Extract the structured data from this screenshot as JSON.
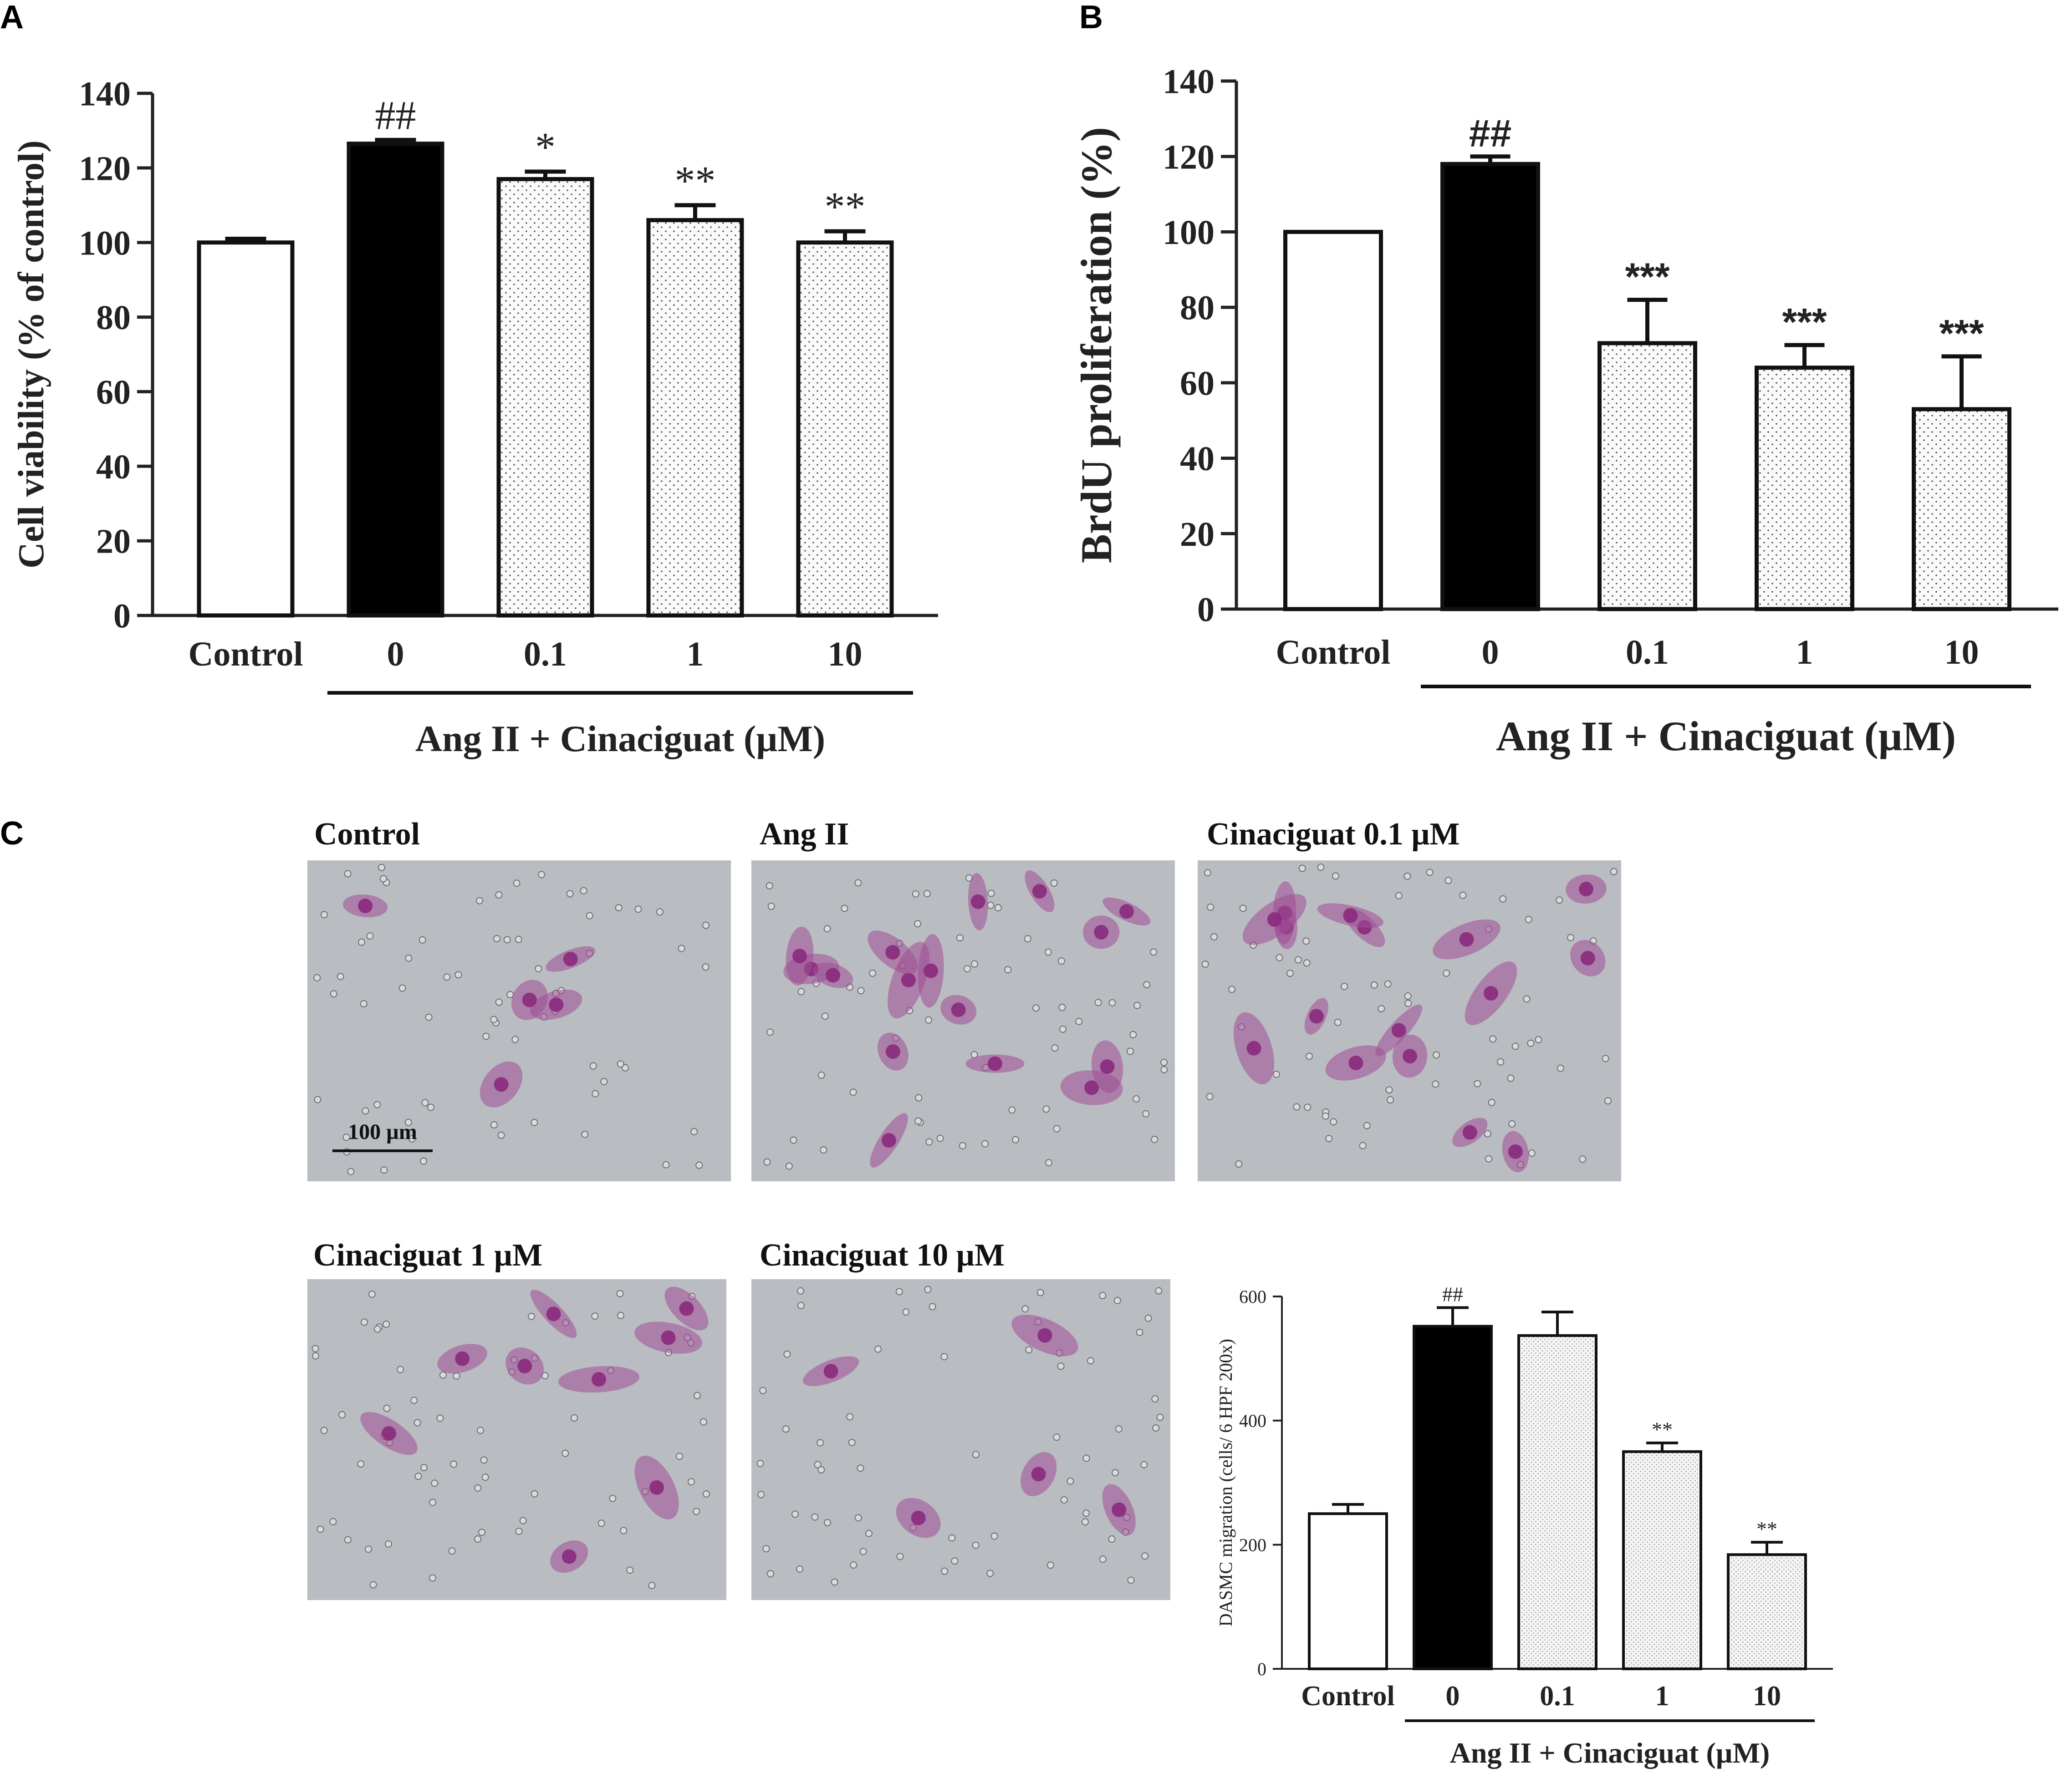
{
  "panels": {
    "a_letter": "A",
    "b_letter": "B",
    "c_letter": "C"
  },
  "colors": {
    "black_bar": "#000000",
    "white_bar": "#ffffff",
    "dotted_bar_bg": "#fafafa",
    "micrograph_bg": "#b9bcc0",
    "cell_stain": "#a14c96",
    "nucleus_stain": "#8a2a7c"
  },
  "micrographs": [
    {
      "label": "Control",
      "density": "low"
    },
    {
      "label": "Ang II",
      "density": "high"
    },
    {
      "label": "Cinaciguat 0.1 µM",
      "density": "high"
    },
    {
      "label": "Cinaciguat 1 µM",
      "density": "medium"
    },
    {
      "label": "Cinaciguat 10 µM",
      "density": "low"
    }
  ],
  "scale_bar": "100 µm",
  "chart_data": [
    {
      "type": "bar",
      "panel": "A",
      "ylabel": "Cell viability (% of control)",
      "group_label": "Ang II  + Cinaciguat (µM)",
      "categories": [
        "Control",
        "0",
        "0.1",
        "1",
        "10"
      ],
      "values": [
        100,
        126.5,
        117,
        106,
        100
      ],
      "errors": [
        1,
        1,
        2,
        4,
        3
      ],
      "fills": [
        "white",
        "black",
        "dotted",
        "dotted",
        "dotted"
      ],
      "significance": [
        "",
        "##",
        "*",
        "**",
        "**"
      ],
      "ylim": [
        0,
        140
      ],
      "yticks": [
        "0",
        "20",
        "40",
        "60",
        "80",
        "100",
        "120",
        "140"
      ]
    },
    {
      "type": "bar",
      "panel": "B",
      "ylabel": "BrdU proliferation (%)",
      "group_label": "Ang II + Cinaciguat  (µM)",
      "categories": [
        "Control",
        "0",
        "0.1",
        "1",
        "10"
      ],
      "values": [
        100,
        118,
        70.5,
        64,
        53
      ],
      "errors": [
        0,
        2,
        11.5,
        6,
        14
      ],
      "fills": [
        "white",
        "black",
        "dotted",
        "dotted",
        "dotted"
      ],
      "significance": [
        "",
        "##",
        "***",
        "***",
        "***"
      ],
      "ylim": [
        0,
        140
      ],
      "yticks": [
        "0",
        "20",
        "40",
        "60",
        "80",
        "100",
        "120",
        "140"
      ]
    },
    {
      "type": "bar",
      "panel": "C",
      "ylabel": "DASMC migration (cells/ 6 HPF 200x)",
      "group_label": "Ang II + Cinaciguat (µM)",
      "categories": [
        "Control",
        "0",
        "0.1",
        "1",
        "10"
      ],
      "values": [
        250,
        552,
        537,
        350,
        184
      ],
      "errors": [
        15,
        30,
        38,
        14,
        20
      ],
      "fills": [
        "white",
        "black",
        "dotted",
        "dotted",
        "dotted"
      ],
      "significance": [
        "",
        "##",
        "",
        "**",
        "**"
      ],
      "ylim": [
        0,
        600
      ],
      "yticks": [
        "0",
        "200",
        "400",
        "600"
      ]
    }
  ]
}
